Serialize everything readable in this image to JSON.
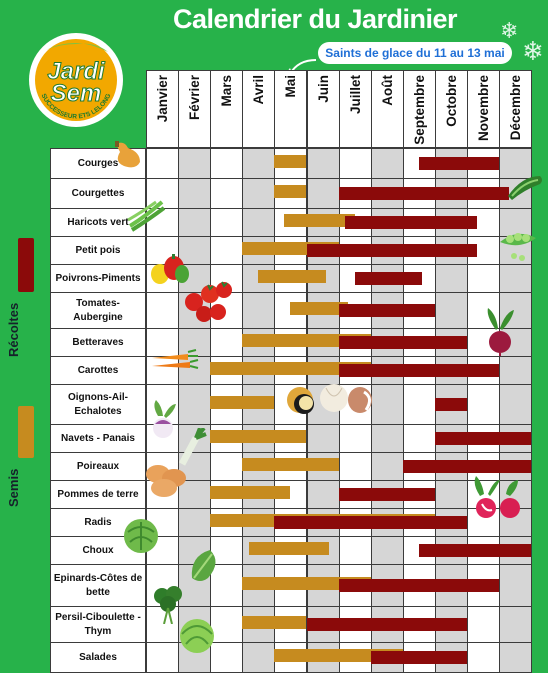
{
  "title": "Calendrier du Jardinier",
  "note": "Saints de glace du 11 au 13 mai",
  "logo": {
    "line1": "Jardi",
    "line2": "Sem",
    "tagline": "SUCCESSEUR ETS LELONG"
  },
  "legend": {
    "harvest_label": "Récoltes",
    "harvest_color": "#8b0a0a",
    "sowing_label": "Semis",
    "sowing_color": "#c68b1f"
  },
  "months": [
    "Janvier",
    "Février",
    "Mars",
    "Avril",
    "Mai",
    "Juin",
    "Juillet",
    "Août",
    "Septembre",
    "Octobre",
    "Novembre",
    "Décembre"
  ],
  "crops": [
    {
      "name": "Courges",
      "sowing": [
        [
          4.0,
          5.0
        ]
      ],
      "harvest": [
        [
          8.5,
          11.0
        ]
      ]
    },
    {
      "name": "Courgettes",
      "sowing": [
        [
          4.0,
          5.0
        ]
      ],
      "harvest": [
        [
          6.0,
          11.3
        ]
      ]
    },
    {
      "name": "Haricots vert",
      "sowing": [
        [
          4.3,
          6.5
        ]
      ],
      "harvest": [
        [
          6.2,
          10.3
        ]
      ]
    },
    {
      "name": "Petit pois",
      "sowing": [
        [
          3.0,
          6.0
        ]
      ],
      "harvest": [
        [
          5.0,
          10.3
        ]
      ]
    },
    {
      "name": "Poivrons-Piments",
      "sowing": [
        [
          3.5,
          5.6
        ]
      ],
      "harvest": [
        [
          6.5,
          8.6
        ]
      ]
    },
    {
      "name": "Tomates-\nAubergine",
      "sowing": [
        [
          4.5,
          6.3
        ]
      ],
      "harvest": [
        [
          6.0,
          9.0
        ]
      ]
    },
    {
      "name": "Betteraves",
      "sowing": [
        [
          3.0,
          7.0
        ]
      ],
      "harvest": [
        [
          6.0,
          10.0
        ]
      ]
    },
    {
      "name": "Carottes",
      "sowing": [
        [
          2.0,
          7.0
        ]
      ],
      "harvest": [
        [
          6.0,
          11.0
        ]
      ]
    },
    {
      "name": "Oignons-Ail-\nEchalotes",
      "sowing": [
        [
          2.0,
          4.0
        ]
      ],
      "harvest": [
        [
          9.0,
          10.0
        ]
      ]
    },
    {
      "name": "Navets - Panais",
      "sowing": [
        [
          2.0,
          5.0
        ]
      ],
      "harvest": [
        [
          9.0,
          12.0
        ]
      ]
    },
    {
      "name": "Poireaux",
      "sowing": [
        [
          3.0,
          6.0
        ]
      ],
      "harvest": [
        [
          8.0,
          12.0
        ]
      ]
    },
    {
      "name": "Pommes de terre",
      "sowing": [
        [
          2.0,
          4.5
        ]
      ],
      "harvest": [
        [
          6.0,
          9.0
        ]
      ]
    },
    {
      "name": "Radis",
      "sowing": [
        [
          2.0,
          9.0
        ]
      ],
      "harvest": [
        [
          4.0,
          10.0
        ]
      ]
    },
    {
      "name": "Choux",
      "sowing": [
        [
          3.2,
          5.7
        ]
      ],
      "harvest": [
        [
          8.5,
          12.0
        ]
      ]
    },
    {
      "name": "Epinards-Côtes de\nbette",
      "sowing": [
        [
          3.0,
          7.0
        ]
      ],
      "harvest": [
        [
          6.0,
          11.0
        ]
      ]
    },
    {
      "name": "Persil-Ciboulette -\nThym",
      "sowing": [
        [
          3.0,
          5.0
        ]
      ],
      "harvest": [
        [
          5.0,
          10.0
        ]
      ]
    },
    {
      "name": "Salades",
      "sowing": [
        [
          4.0,
          8.0
        ]
      ],
      "harvest": [
        [
          7.0,
          10.0
        ]
      ]
    }
  ]
}
